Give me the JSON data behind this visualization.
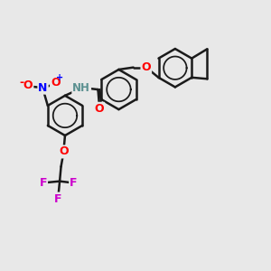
{
  "bg_color": "#e8e8e8",
  "bond_color": "#1a1a1a",
  "bond_width": 1.8,
  "figsize": [
    3.0,
    3.0
  ],
  "dpi": 100,
  "xlim": [
    0,
    10
  ],
  "ylim": [
    0,
    10
  ]
}
